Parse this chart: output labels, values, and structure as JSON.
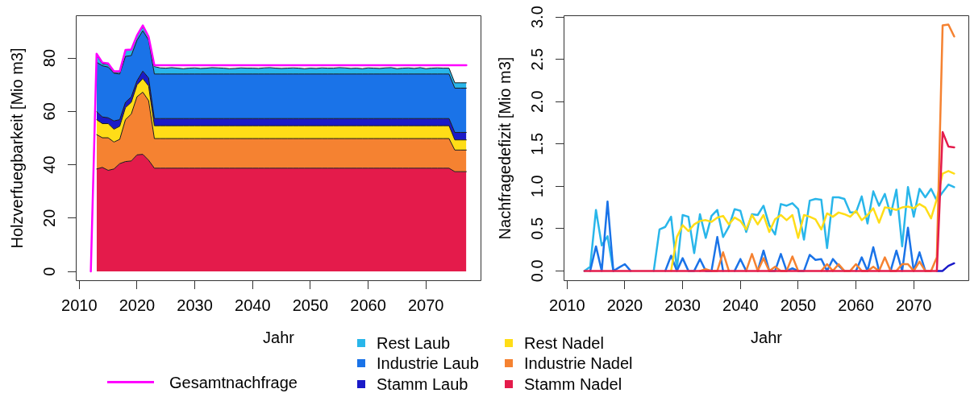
{
  "chart_data": [
    {
      "type": "area",
      "stacked": true,
      "xlabel": "Jahr",
      "ylabel": "Holzverfuegbarkeit [Mio m3]",
      "xlim": [
        2009.4,
        2079.6
      ],
      "xticks": [
        2010,
        2020,
        2030,
        2040,
        2050,
        2060,
        2070
      ],
      "ylim": [
        -3.6,
        96
      ],
      "yticks": [
        0,
        20,
        40,
        60,
        80
      ],
      "legend": "bottom",
      "x": [
        2013,
        2014,
        2015,
        2016,
        2017,
        2018,
        2019,
        2020,
        2021,
        2022,
        2023,
        2024,
        2025,
        2026,
        2027,
        2028,
        2029,
        2030,
        2031,
        2032,
        2033,
        2034,
        2035,
        2036,
        2037,
        2038,
        2039,
        2040,
        2041,
        2042,
        2043,
        2044,
        2045,
        2046,
        2047,
        2048,
        2049,
        2050,
        2051,
        2052,
        2053,
        2054,
        2055,
        2056,
        2057,
        2058,
        2059,
        2060,
        2061,
        2062,
        2063,
        2064,
        2065,
        2066,
        2067,
        2068,
        2069,
        2070,
        2071,
        2072,
        2073,
        2074,
        2075,
        2076,
        2077
      ],
      "series": [
        {
          "name": "Stamm Nadel",
          "color": "#e41b4b",
          "values": [
            38.4,
            39,
            37.9,
            38.4,
            40.4,
            41.2,
            41.4,
            43.7,
            43.9,
            41.7,
            38.7,
            38.7,
            38.7,
            38.7,
            38.7,
            38.7,
            38.7,
            38.7,
            38.7,
            38.7,
            38.7,
            38.7,
            38.7,
            38.7,
            38.7,
            38.7,
            38.7,
            38.7,
            38.7,
            38.7,
            38.7,
            38.7,
            38.7,
            38.7,
            38.7,
            38.7,
            38.7,
            38.7,
            38.7,
            38.7,
            38.7,
            38.7,
            38.7,
            38.7,
            38.7,
            38.7,
            38.7,
            38.7,
            38.7,
            38.7,
            38.7,
            38.7,
            38.7,
            38.7,
            38.7,
            38.7,
            38.7,
            38.7,
            38.7,
            38.7,
            38.7,
            38.7,
            37.4,
            37.4,
            37.4
          ]
        },
        {
          "name": "Industrie Nadel",
          "color": "#f58231",
          "values": [
            12.9,
            11.1,
            12.2,
            10.1,
            9.1,
            15.7,
            17.6,
            21.8,
            23.3,
            22.3,
            11.1,
            11.1,
            11.1,
            11.1,
            11.1,
            11.1,
            11.1,
            11.1,
            11.1,
            11.1,
            11.1,
            11.1,
            11.1,
            11.1,
            11.1,
            11.1,
            11.1,
            11.1,
            11.1,
            11.1,
            11.1,
            11.1,
            11.1,
            11.1,
            11.1,
            11.1,
            11.1,
            11.1,
            11.1,
            11.1,
            11.1,
            11.1,
            11.1,
            11.1,
            11.1,
            11.1,
            11.1,
            11.1,
            11.1,
            11.1,
            11.1,
            11.1,
            11.1,
            11.1,
            11.1,
            11.1,
            11.1,
            11.1,
            11.1,
            11.1,
            11.1,
            11.1,
            8.1,
            8.1,
            8.1
          ]
        },
        {
          "name": "Rest Nadel",
          "color": "#ffdd17",
          "values": [
            5.6,
            5.3,
            5.3,
            4.8,
            4.9,
            4.5,
            4.4,
            4.4,
            5.1,
            5.5,
            4.8,
            4.8,
            4.8,
            4.8,
            4.8,
            4.8,
            4.8,
            4.8,
            4.8,
            4.8,
            4.8,
            4.8,
            4.8,
            4.8,
            4.8,
            4.8,
            4.8,
            4.8,
            4.8,
            4.8,
            4.8,
            4.8,
            4.8,
            4.8,
            4.8,
            4.8,
            4.8,
            4.8,
            4.8,
            4.8,
            4.8,
            4.8,
            4.8,
            4.8,
            4.8,
            4.8,
            4.8,
            4.8,
            4.8,
            4.8,
            4.8,
            4.8,
            4.8,
            4.8,
            4.8,
            4.8,
            4.8,
            4.8,
            4.8,
            4.8,
            4.8,
            4.8,
            3.8,
            3.8,
            3.8
          ]
        },
        {
          "name": "Stamm Laub",
          "color": "#1a1ac8",
          "values": [
            3,
            2.5,
            2.2,
            3.1,
            2.5,
            2,
            2,
            1.6,
            2.8,
            3,
            2.7,
            2.7,
            2.7,
            2.7,
            2.7,
            2.7,
            2.7,
            2.7,
            2.7,
            2.7,
            2.7,
            2.7,
            2.7,
            2.7,
            2.7,
            2.7,
            2.7,
            2.7,
            2.7,
            2.7,
            2.7,
            2.7,
            2.7,
            2.7,
            2.7,
            2.7,
            2.7,
            2.7,
            2.7,
            2.7,
            2.7,
            2.7,
            2.7,
            2.7,
            2.7,
            2.7,
            2.7,
            2.7,
            2.7,
            2.7,
            2.7,
            2.7,
            2.7,
            2.7,
            2.7,
            2.7,
            2.7,
            2.7,
            2.7,
            2.7,
            2.7,
            2.7,
            2.8,
            2.8,
            2.8
          ]
        },
        {
          "name": "Industrie Laub",
          "color": "#1a73e8",
          "values": [
            18.5,
            19.2,
            19,
            17.9,
            17.1,
            17.2,
            15.5,
            15.2,
            15.1,
            14.2,
            16.7,
            16.7,
            16.7,
            16.7,
            16.7,
            16.7,
            16.7,
            16.7,
            16.7,
            16.7,
            16.7,
            16.7,
            16.7,
            16.7,
            16.7,
            16.7,
            16.7,
            16.7,
            16.7,
            16.7,
            16.7,
            16.7,
            16.7,
            16.7,
            16.7,
            16.7,
            16.7,
            16.7,
            16.7,
            16.7,
            16.7,
            16.7,
            16.7,
            16.7,
            16.7,
            16.7,
            16.7,
            16.7,
            16.7,
            16.7,
            16.7,
            16.7,
            16.7,
            16.7,
            16.7,
            16.7,
            16.7,
            16.7,
            16.7,
            16.7,
            16.7,
            16.7,
            16.6,
            16.6,
            16.6
          ]
        },
        {
          "name": "Rest Laub",
          "color": "#29b6ea",
          "values": [
            2.7,
            0.7,
            1,
            0.2,
            0.7,
            2.2,
            2.2,
            1.5,
            1.5,
            1,
            2.8,
            2.3,
            2.2,
            2.4,
            2.2,
            2,
            2.2,
            2.3,
            2.1,
            2.2,
            2.4,
            2.3,
            2.2,
            2,
            2.1,
            2.3,
            2.2,
            2.2,
            2.1,
            2.3,
            2.4,
            2.2,
            2.1,
            2.2,
            2.3,
            2.2,
            2,
            2.2,
            2.1,
            2.3,
            2.2,
            2.2,
            2.4,
            2.3,
            2.1,
            2.2,
            2,
            2.3,
            2.2,
            2.1,
            2.3,
            2.4,
            2,
            2.2,
            2.3,
            2.1,
            2.4,
            2,
            2.2,
            2.3,
            2.2,
            2.2,
            2,
            2,
            2
          ]
        },
        {
          "name": "Gesamtnachfrage",
          "type": "line",
          "color": "#ff00ff",
          "x": [
            2012,
            2013,
            2014,
            2015,
            2016,
            2017,
            2018,
            2019,
            2020,
            2021,
            2022,
            2023,
            2024,
            2025,
            2026,
            2027,
            2028,
            2029,
            2030,
            2031,
            2032,
            2033,
            2034,
            2035,
            2036,
            2037,
            2038,
            2039,
            2040,
            2041,
            2042,
            2043,
            2044,
            2045,
            2046,
            2047,
            2048,
            2049,
            2050,
            2051,
            2052,
            2053,
            2054,
            2055,
            2056,
            2057,
            2058,
            2059,
            2060,
            2061,
            2062,
            2063,
            2064,
            2065,
            2066,
            2067,
            2068,
            2069,
            2070,
            2071,
            2072,
            2073,
            2074,
            2075,
            2076,
            2077
          ],
          "values": [
            0,
            81.6,
            78.3,
            78,
            75,
            75,
            83,
            83.2,
            88.5,
            92.2,
            88,
            77.3,
            77.3,
            77.3,
            77.3,
            77.3,
            77.3,
            77.3,
            77.3,
            77.3,
            77.3,
            77.3,
            77.3,
            77.3,
            77.3,
            77.3,
            77.3,
            77.3,
            77.3,
            77.3,
            77.3,
            77.3,
            77.3,
            77.3,
            77.3,
            77.3,
            77.3,
            77.3,
            77.3,
            77.3,
            77.3,
            77.3,
            77.3,
            77.3,
            77.3,
            77.3,
            77.3,
            77.3,
            77.3,
            77.3,
            77.3,
            77.3,
            77.3,
            77.3,
            77.3,
            77.3,
            77.3,
            77.3,
            77.3,
            77.3,
            77.3,
            77.3,
            77.3,
            77.3,
            77.3,
            77.3
          ]
        }
      ]
    },
    {
      "type": "line",
      "xlabel": "Jahr",
      "ylabel": "Nachfragedefizit [Mio m3]",
      "xlim": [
        2009.4,
        2079.6
      ],
      "xticks": [
        2010,
        2020,
        2030,
        2040,
        2050,
        2060,
        2070
      ],
      "ylim": [
        -0.12,
        3.02
      ],
      "yticks": [
        {
          "value": 0,
          "label": "0.0"
        },
        0.5,
        {
          "value": 1,
          "label": "1.0"
        },
        1.5,
        {
          "value": 2,
          "label": "2.0"
        },
        2.5,
        {
          "value": 3,
          "label": "3.0"
        }
      ],
      "x": [
        2013,
        2014,
        2015,
        2016,
        2017,
        2018,
        2019,
        2020,
        2021,
        2022,
        2023,
        2024,
        2025,
        2026,
        2027,
        2028,
        2029,
        2030,
        2031,
        2032,
        2033,
        2034,
        2035,
        2036,
        2037,
        2038,
        2039,
        2040,
        2041,
        2042,
        2043,
        2044,
        2045,
        2046,
        2047,
        2048,
        2049,
        2050,
        2051,
        2052,
        2053,
        2054,
        2055,
        2056,
        2057,
        2058,
        2059,
        2060,
        2061,
        2062,
        2063,
        2064,
        2065,
        2066,
        2067,
        2068,
        2069,
        2070,
        2071,
        2072,
        2073,
        2074,
        2075,
        2076,
        2077
      ],
      "series": [
        {
          "color": "#e41b4b",
          "values": [
            0,
            0,
            0,
            0,
            0,
            0,
            0,
            0,
            0,
            0,
            0,
            0,
            0,
            0,
            0,
            0,
            0,
            0,
            0,
            0,
            0,
            0,
            0,
            0,
            0,
            0,
            0,
            0,
            0,
            0,
            0,
            0,
            0,
            0,
            0,
            0,
            0,
            0,
            0,
            0,
            0,
            0,
            0,
            0,
            0,
            0,
            0,
            0,
            0,
            0,
            0,
            0,
            0,
            0,
            0,
            0,
            0,
            0,
            0,
            0,
            0,
            0,
            1.64,
            1.47,
            1.46
          ]
        },
        {
          "color": "#f58231",
          "values": [
            null,
            null,
            null,
            null,
            null,
            null,
            null,
            null,
            null,
            null,
            null,
            null,
            null,
            null,
            null,
            null,
            null,
            null,
            null,
            null,
            0,
            0.02,
            0,
            0,
            0.22,
            0,
            null,
            null,
            0,
            0.2,
            0,
            0.15,
            0,
            0.05,
            0,
            0,
            0.17,
            0,
            null,
            null,
            null,
            0,
            0.08,
            0,
            0.08,
            0,
            0,
            0.08,
            0,
            0,
            0.05,
            0,
            0.16,
            0,
            0,
            0.08,
            0.08,
            0,
            0.11,
            0,
            0,
            0.16,
            2.9,
            2.91,
            2.77
          ]
        },
        {
          "color": "#ffdd17",
          "values": [
            null,
            null,
            null,
            null,
            null,
            null,
            null,
            null,
            null,
            null,
            null,
            null,
            null,
            null,
            null,
            0,
            0.4,
            0.54,
            0.47,
            0.55,
            0.59,
            0.6,
            0.58,
            0.63,
            0.65,
            0.55,
            0.63,
            0.59,
            0.49,
            0.66,
            0.55,
            0.66,
            0.46,
            0.61,
            0.66,
            0.6,
            0.66,
            0.39,
            0.66,
            0.64,
            0.61,
            0.49,
            0.68,
            0.64,
            0.69,
            0.67,
            0.64,
            0.71,
            0.6,
            0.66,
            0.74,
            0.57,
            0.75,
            0.74,
            0.72,
            0.75,
            0.76,
            0.74,
            0.79,
            0.75,
            0.62,
            0.85,
            1.15,
            1.18,
            1.15
          ]
        },
        {
          "color": "#1a1ac8",
          "values": [
            null,
            null,
            null,
            null,
            null,
            null,
            null,
            null,
            null,
            null,
            null,
            null,
            null,
            null,
            null,
            null,
            null,
            null,
            null,
            null,
            null,
            null,
            null,
            null,
            null,
            null,
            null,
            null,
            null,
            null,
            null,
            null,
            null,
            null,
            null,
            null,
            null,
            null,
            null,
            null,
            null,
            null,
            null,
            null,
            null,
            null,
            null,
            null,
            null,
            null,
            null,
            null,
            null,
            null,
            null,
            null,
            null,
            null,
            null,
            null,
            null,
            0,
            0,
            0.06,
            0.09
          ]
        },
        {
          "color": "#1a73e8",
          "values": [
            null,
            0,
            0.29,
            0,
            0.82,
            0,
            0.04,
            0.08,
            0,
            null,
            null,
            null,
            null,
            null,
            0,
            0.18,
            0,
            0.15,
            0,
            0,
            0.14,
            0,
            0,
            0.4,
            0,
            null,
            0,
            0.14,
            0,
            null,
            0,
            0.24,
            0,
            0,
            0.2,
            0,
            0.03,
            0,
            0,
            0.19,
            0.13,
            0.14,
            0,
            0.14,
            0.06,
            0,
            null,
            0,
            0.16,
            0,
            0.28,
            0,
            null,
            0,
            0.24,
            0,
            0.51,
            0,
            0.22,
            0,
            null,
            null,
            null,
            null,
            null
          ]
        },
        {
          "color": "#29b6ea",
          "values": [
            0,
            0.05,
            0.72,
            0.3,
            0.41,
            0,
            null,
            null,
            null,
            null,
            null,
            null,
            0,
            0.49,
            0.52,
            0.64,
            0.02,
            0.66,
            0.64,
            0.21,
            0.67,
            0.39,
            0.65,
            0.72,
            0.4,
            0.52,
            0.73,
            0.71,
            0.46,
            0.67,
            0.66,
            0.77,
            0.54,
            0.43,
            0.79,
            0.77,
            0.8,
            0.73,
            0.37,
            0.83,
            0.85,
            0.84,
            0.27,
            0.87,
            0.87,
            0.85,
            0.69,
            0.69,
            0.88,
            0.56,
            0.94,
            0.77,
            0.91,
            0.66,
            0.96,
            0.29,
            0.99,
            0.64,
            0.97,
            0.87,
            0.97,
            0.83,
            0.93,
            1.02,
            0.99
          ]
        }
      ]
    }
  ]
}
